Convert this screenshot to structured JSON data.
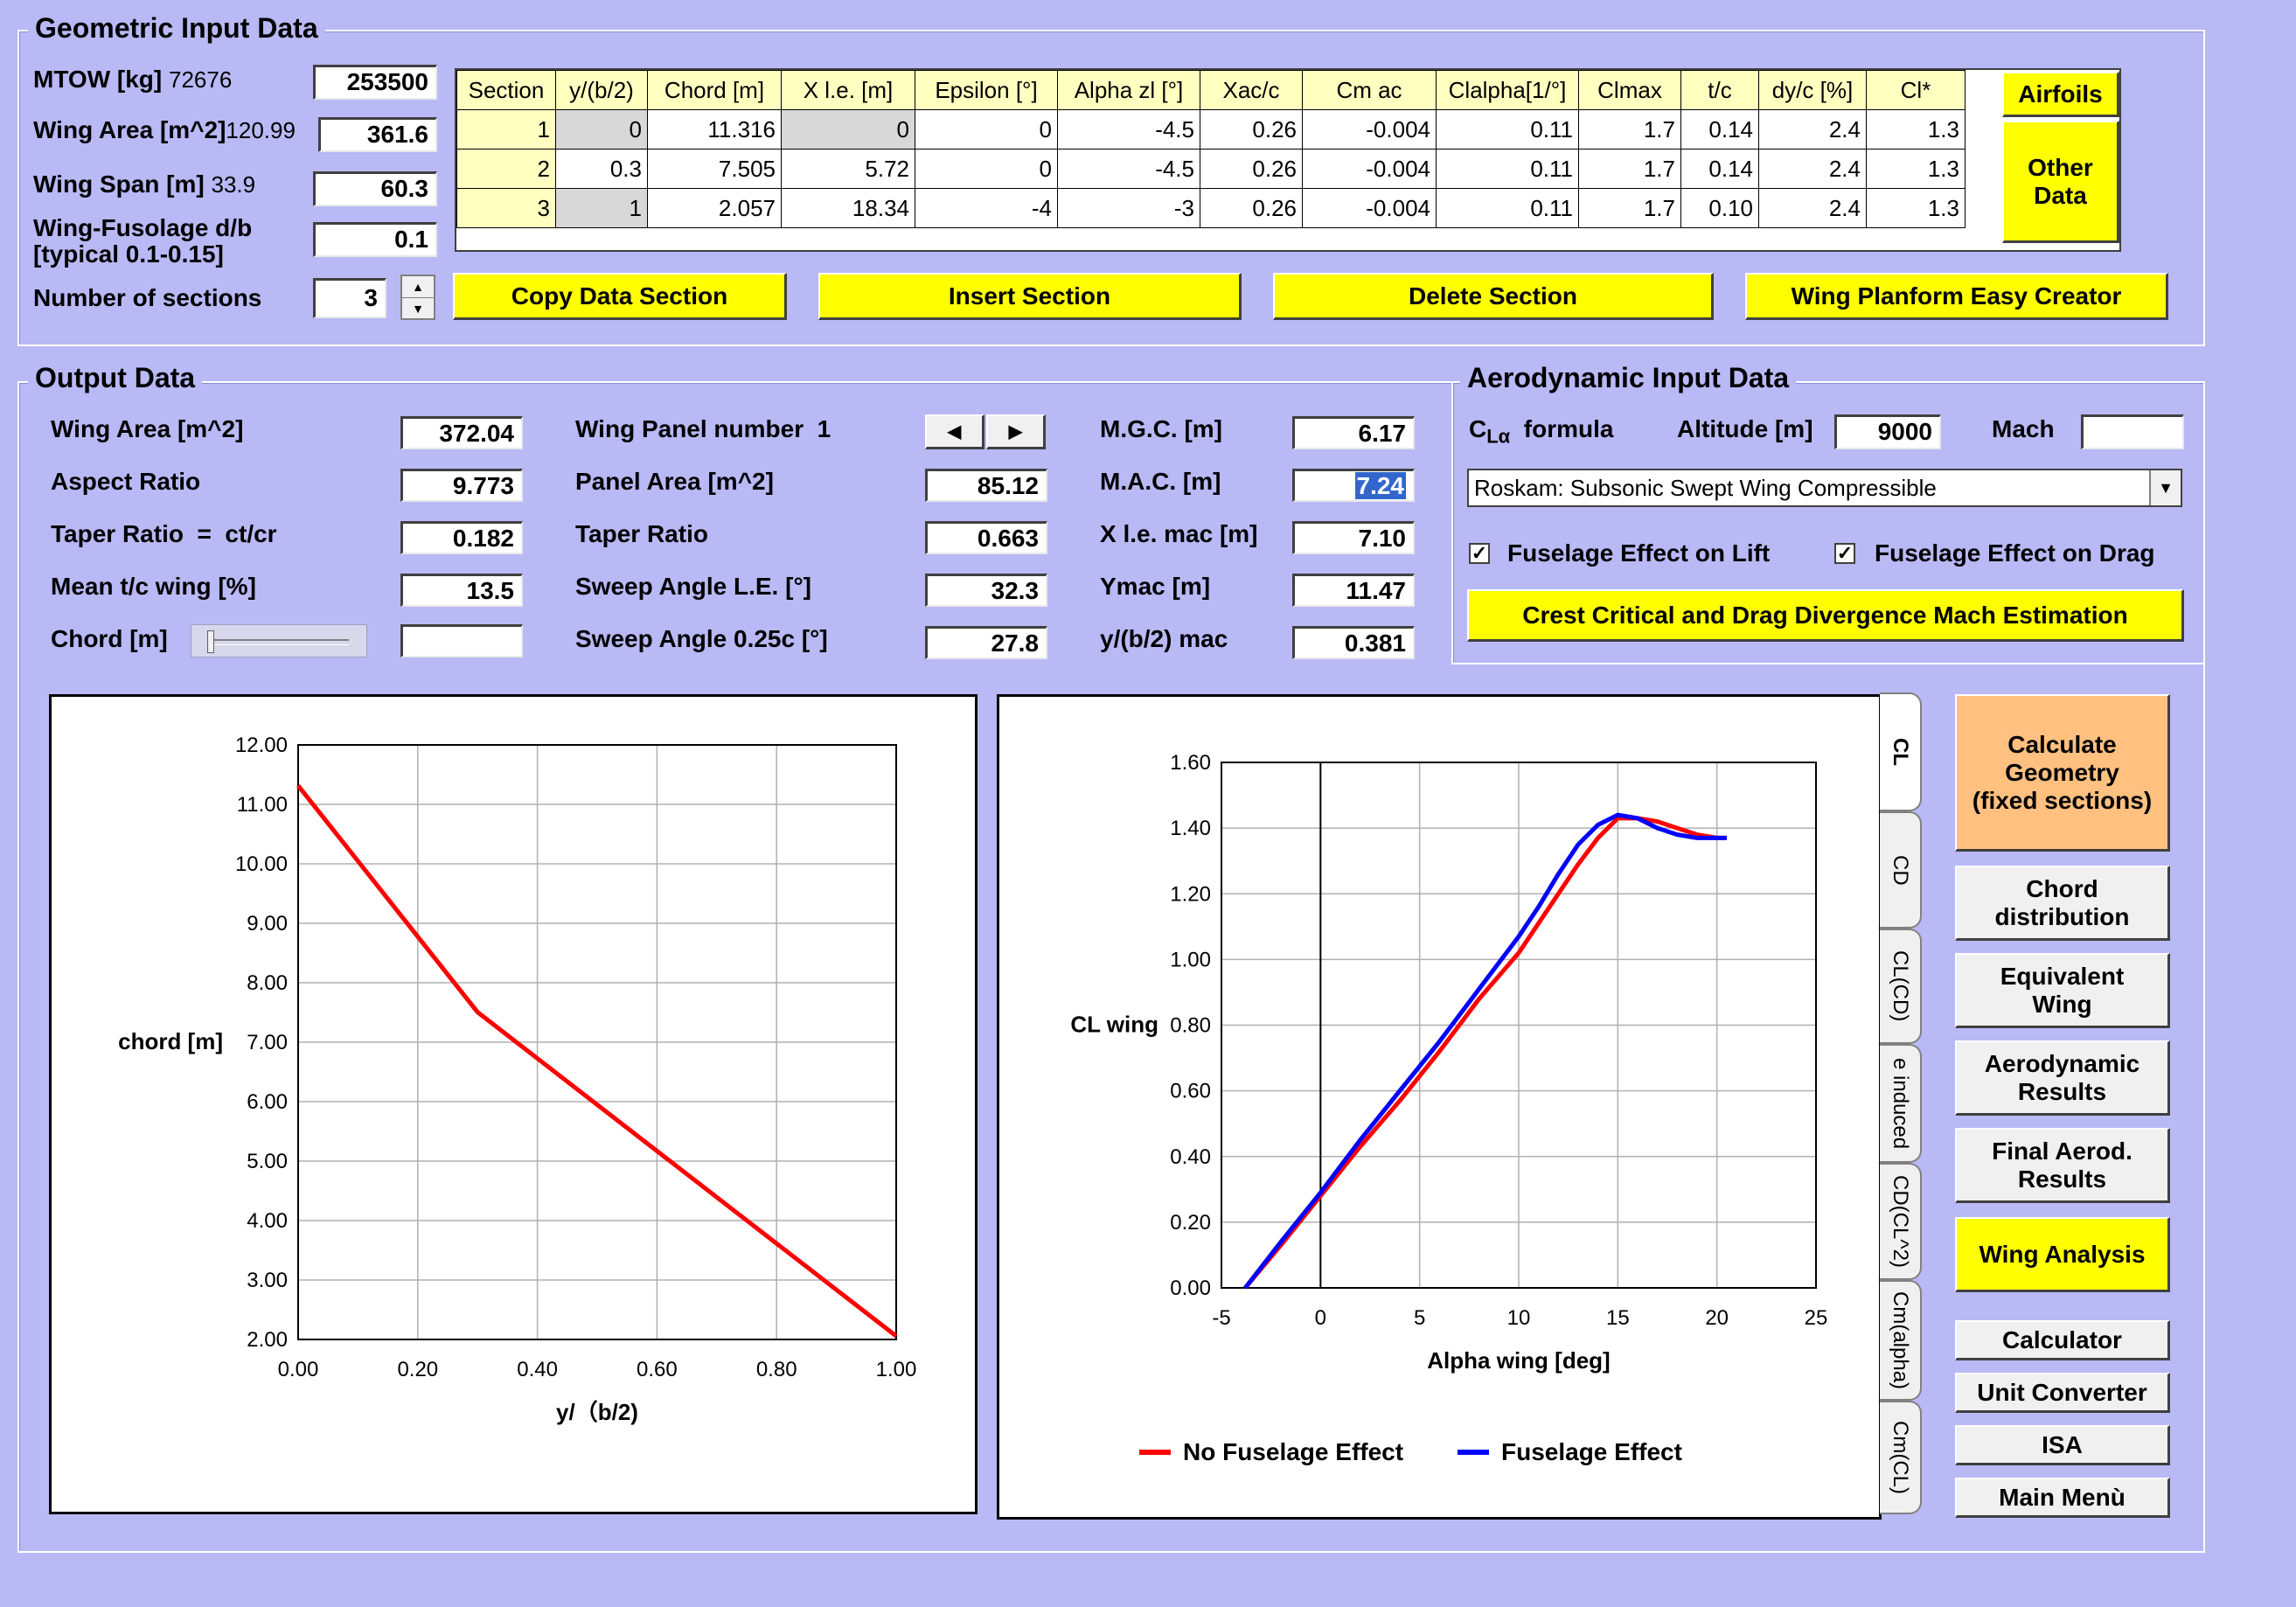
{
  "geometric": {
    "legend": "Geometric Input Data",
    "mtow_label": "MTOW [kg]",
    "mtow_extra": "72676",
    "mtow_value": "253500",
    "area_label": "Wing Area [m^2]",
    "area_extra": "120.99",
    "area_value": "361.6",
    "span_label": "Wing Span [m]",
    "span_extra": "33.9",
    "span_value": "60.3",
    "dfus_label1": "Wing-Fusolage d/b",
    "dfus_label2": "[typical 0.1-0.15]",
    "dfus_value": "0.1",
    "nsec_label": "Number of sections",
    "nsec_value": "3",
    "table": {
      "headers": [
        "Section",
        "y/(b/2)",
        "Chord [m]",
        "X l.e. [m]",
        "Epsilon [°]",
        "Alpha zl [°]",
        "Xac/c",
        "Cm ac",
        "Clalpha[1/°]",
        "Clmax",
        "t/c",
        "dy/c [%]",
        "Cl*"
      ],
      "rows": [
        [
          "1",
          "0",
          "11.316",
          "0",
          "0",
          "-4.5",
          "0.26",
          "-0.004",
          "0.11",
          "1.7",
          "0.14",
          "2.4",
          "1.3"
        ],
        [
          "2",
          "0.3",
          "7.505",
          "5.72",
          "0",
          "-4.5",
          "0.26",
          "-0.004",
          "0.11",
          "1.7",
          "0.14",
          "2.4",
          "1.3"
        ],
        [
          "3",
          "1",
          "2.057",
          "18.34",
          "-4",
          "-3",
          "0.26",
          "-0.004",
          "0.11",
          "1.7",
          "0.10",
          "2.4",
          "1.3"
        ]
      ]
    },
    "airfoils_btn": "Airfoils",
    "other_btn": "Other Data",
    "copy_btn": "Copy Data Section",
    "insert_btn": "Insert Section",
    "delete_btn": "Delete Section",
    "planform_btn": "Wing Planform Easy Creator"
  },
  "output": {
    "legend": "Output Data",
    "wing_area_label": "Wing Area [m^2]",
    "wing_area": "372.04",
    "ar_label": "Aspect Ratio",
    "ar": "9.773",
    "taper_label": "Taper Ratio  =  ct/cr",
    "taper": "0.182",
    "tc_label": "Mean t/c wing [%]",
    "tc": "13.5",
    "chord_label": "Chord [m]",
    "chord": "",
    "panel_label": "Wing Panel number",
    "panel_no": "1",
    "panel_area_label": "Panel Area [m^2]",
    "panel_area": "85.12",
    "ptaper_label": "Taper Ratio",
    "ptaper": "0.663",
    "sweep_le_label": "Sweep Angle L.E. [°]",
    "sweep_le": "32.3",
    "sweep_25_label": "Sweep Angle 0.25c [°]",
    "sweep_25": "27.8",
    "mgc_label": "M.G.C. [m]",
    "mgc": "6.17",
    "mac_label": "M.A.C. [m]",
    "mac": "7.24",
    "xle_label": "X l.e. mac [m]",
    "xle": "7.10",
    "ymac_label": "Ymac [m]",
    "ymac": "11.47",
    "yb2_label": "y/(b/2) mac",
    "yb2": "0.381"
  },
  "aero": {
    "legend": "Aerodynamic Input Data",
    "cla_c": "C",
    "cla_sub": "Lα",
    "cla_text": "formula",
    "alt_label": "Altitude [m]",
    "alt": "9000",
    "mach_label": "Mach",
    "mach": "",
    "formula": "Roskam: Subsonic Swept Wing Compressible",
    "fus_lift": "Fuselage Effect on Lift",
    "fus_drag": "Fuselage Effect on Drag",
    "crest_btn": "Crest Critical and Drag Divergence Mach Estimation"
  },
  "tabs": [
    "CL",
    "CD",
    "CL(CD)",
    "e induced",
    "CD(CL^2)",
    "Cm(alpha)",
    "Cm(CL)"
  ],
  "side_buttons": {
    "calc_geom": "Calculate Geometry (fixed sections)",
    "chord_dist": "Chord distribution",
    "equiv": "Equivalent Wing",
    "aero_res": "Aerodynamic Results",
    "final_res": "Final Aerod. Results",
    "wing_analysis": "Wing Analysis",
    "calculator": "Calculator",
    "unit_conv": "Unit Converter",
    "isa": "ISA",
    "main_menu": "Main Menù"
  },
  "chart_data": [
    {
      "type": "line",
      "xlabel": "y/（b/2)",
      "ylabel": "chord [m]",
      "xlim": [
        0,
        1
      ],
      "ylim": [
        2,
        12
      ],
      "xticks": [
        "0.00",
        "0.20",
        "0.40",
        "0.60",
        "0.80",
        "1.00"
      ],
      "yticks": [
        "2.00",
        "3.00",
        "4.00",
        "5.00",
        "6.00",
        "7.00",
        "8.00",
        "9.00",
        "10.00",
        "11.00",
        "12.00"
      ],
      "grid": true,
      "color": "#ff0000",
      "x": [
        0,
        0.3,
        1.0
      ],
      "y": [
        11.316,
        7.505,
        2.057
      ]
    },
    {
      "type": "line",
      "xlabel": "Alpha wing [deg]",
      "ylabel": "CL wing",
      "xlim": [
        -5,
        25
      ],
      "ylim": [
        0,
        1.6
      ],
      "xticks": [
        "-5",
        "0",
        "5",
        "10",
        "15",
        "20",
        "25"
      ],
      "yticks": [
        "0.00",
        "0.20",
        "0.40",
        "0.60",
        "0.80",
        "1.00",
        "1.20",
        "1.40",
        "1.60"
      ],
      "grid": true,
      "legend_position": "bottom",
      "series": [
        {
          "name": "No Fuselage Effect",
          "color": "#ff0000",
          "x": [
            -3.8,
            -2,
            0,
            2,
            4,
            6,
            8,
            10,
            11,
            12,
            13,
            14,
            15,
            16,
            17,
            18,
            19,
            20,
            20.5
          ],
          "y": [
            0,
            0.13,
            0.28,
            0.43,
            0.57,
            0.72,
            0.88,
            1.02,
            1.11,
            1.2,
            1.29,
            1.37,
            1.43,
            1.43,
            1.42,
            1.4,
            1.38,
            1.37,
            1.37
          ]
        },
        {
          "name": "Fuselage Effect",
          "color": "#0000ff",
          "x": [
            -3.8,
            -2,
            0,
            2,
            4,
            6,
            8,
            10,
            11,
            12,
            13,
            14,
            15,
            16,
            17,
            18,
            19,
            20,
            20.5
          ],
          "y": [
            0,
            0.14,
            0.29,
            0.45,
            0.6,
            0.75,
            0.91,
            1.07,
            1.16,
            1.26,
            1.35,
            1.41,
            1.44,
            1.43,
            1.4,
            1.38,
            1.37,
            1.37,
            1.37
          ]
        }
      ]
    }
  ]
}
